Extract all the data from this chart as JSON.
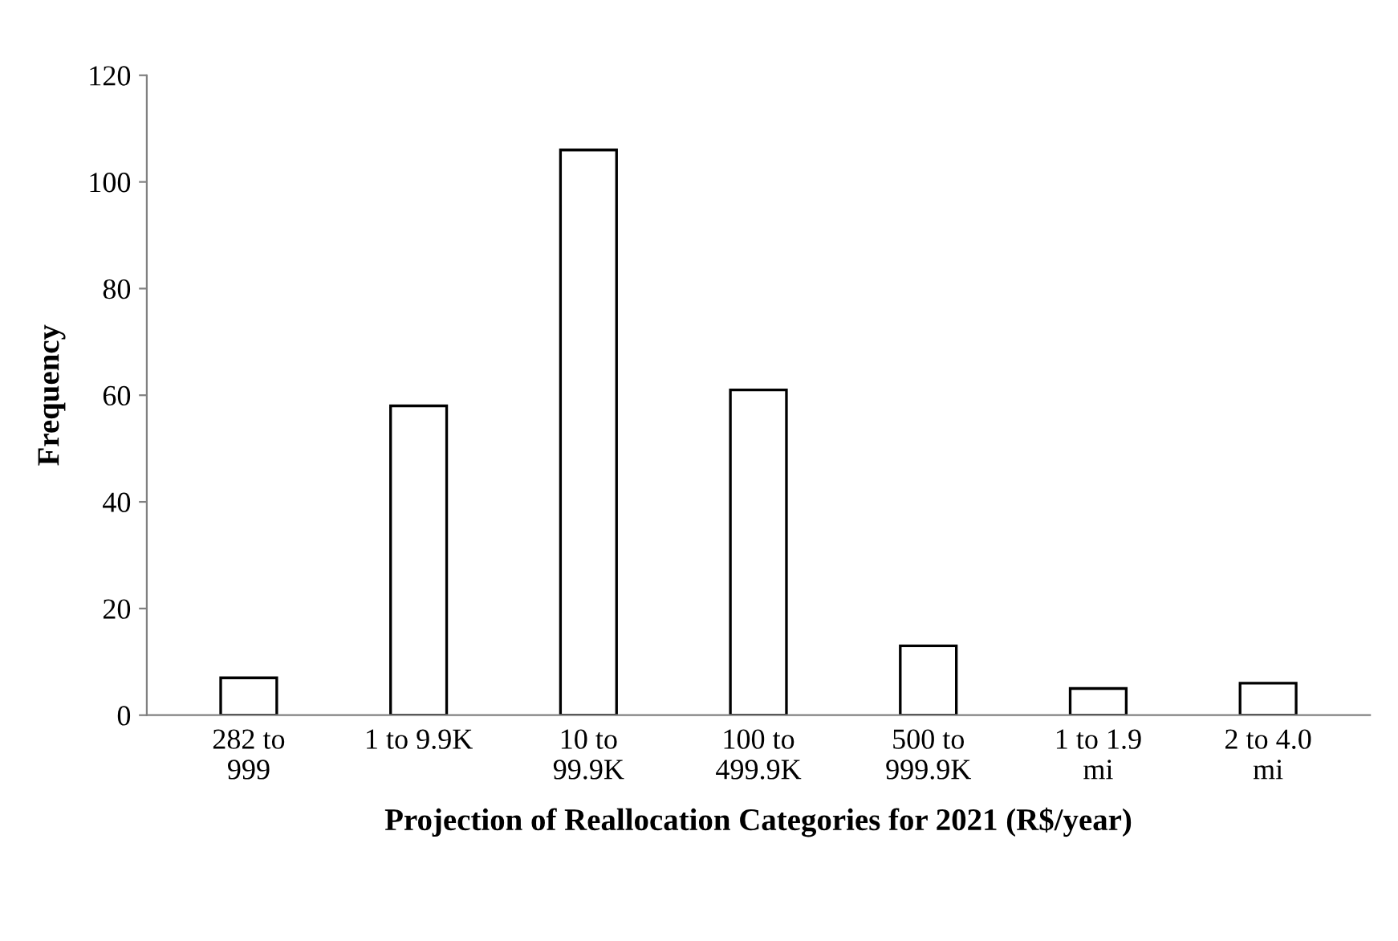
{
  "chart_data": {
    "type": "bar",
    "xlabel": "Projection of Reallocation Categories for 2021 (R$/year)",
    "ylabel": "Frequency",
    "categories": [
      "282 to\n999",
      "1 to 9.9K",
      "10 to\n99.9K",
      "100 to\n499.9K",
      "500 to\n999.9K",
      "1 to 1.9\nmi",
      "2 to 4.0\nmi"
    ],
    "values": [
      7,
      58,
      106,
      61,
      13,
      5,
      6
    ],
    "color": "#ffffff",
    "ylim": [
      0,
      120
    ],
    "yticks": [
      0,
      20,
      40,
      60,
      80,
      100,
      120
    ],
    "grid": false,
    "legend": false
  }
}
